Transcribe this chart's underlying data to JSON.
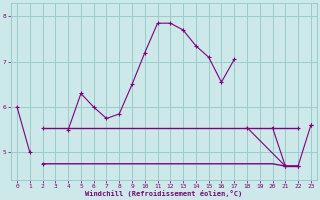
{
  "xlabel": "Windchill (Refroidissement éolien,°C)",
  "bg_color": "#cce8e8",
  "grid_color": "#99cccc",
  "line_color": "#800080",
  "x_values": [
    0,
    1,
    2,
    3,
    4,
    5,
    6,
    7,
    8,
    9,
    10,
    11,
    12,
    13,
    14,
    15,
    16,
    17,
    18,
    19,
    20,
    21,
    22,
    23
  ],
  "line1_y": [
    6.0,
    5.0,
    null,
    null,
    5.5,
    6.3,
    6.0,
    5.75,
    5.85,
    6.5,
    7.2,
    7.85,
    7.85,
    7.7,
    7.35,
    7.1,
    6.55,
    7.05,
    null,
    null,
    null,
    null,
    null,
    5.6
  ],
  "line2_y": [
    null,
    null,
    5.55,
    5.55,
    5.55,
    5.55,
    5.55,
    5.55,
    5.55,
    5.55,
    5.55,
    5.55,
    5.55,
    5.55,
    5.55,
    5.55,
    5.55,
    5.55,
    5.55,
    5.55,
    5.55,
    5.55,
    5.55,
    null
  ],
  "line3_y": [
    null,
    null,
    4.75,
    4.75,
    4.75,
    4.75,
    4.75,
    4.75,
    4.75,
    4.75,
    4.75,
    4.75,
    4.75,
    4.75,
    4.75,
    4.75,
    4.75,
    4.75,
    4.75,
    4.75,
    4.75,
    4.7,
    4.7,
    null
  ],
  "line4_y": [
    null,
    null,
    null,
    null,
    null,
    null,
    null,
    null,
    null,
    null,
    null,
    null,
    null,
    null,
    null,
    null,
    null,
    null,
    null,
    null,
    null,
    4.7,
    4.7,
    null
  ],
  "right_line_x": [
    18,
    21,
    22,
    23
  ],
  "right_line_y": [
    5.55,
    4.7,
    4.7,
    5.6
  ],
  "ylim": [
    4.4,
    8.3
  ],
  "yticks": [
    5,
    6,
    7,
    8
  ],
  "xticks": [
    0,
    1,
    2,
    3,
    4,
    5,
    6,
    7,
    8,
    9,
    10,
    11,
    12,
    13,
    14,
    15,
    16,
    17,
    18,
    19,
    20,
    21,
    22,
    23
  ]
}
